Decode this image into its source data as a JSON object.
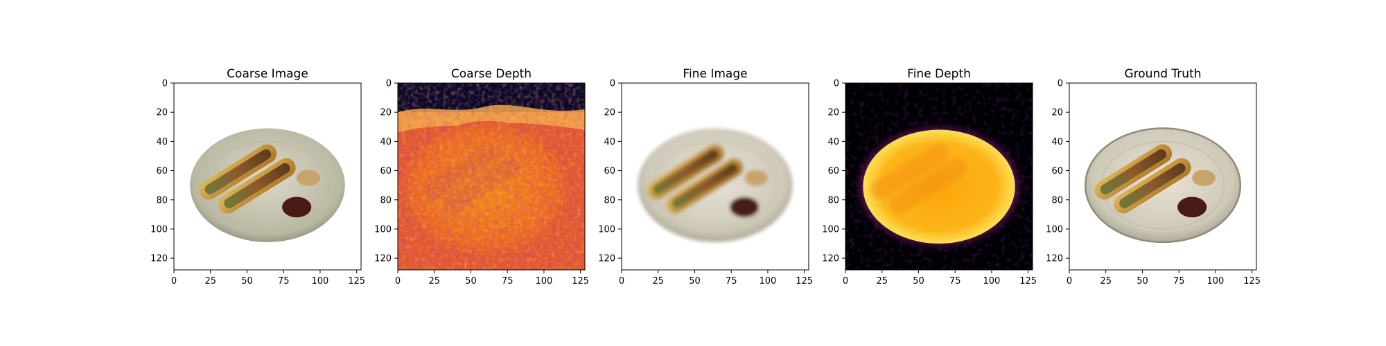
{
  "panels": [
    {
      "title": "Coarse Image",
      "kind": "rgb",
      "variant": "coarse"
    },
    {
      "title": "Coarse Depth",
      "kind": "depth",
      "variant": "coarse"
    },
    {
      "title": "Fine Image",
      "kind": "rgb",
      "variant": "fine"
    },
    {
      "title": "Fine Depth",
      "kind": "depth",
      "variant": "fine"
    },
    {
      "title": "Ground Truth",
      "kind": "rgb",
      "variant": "gt"
    }
  ],
  "axes": {
    "xticks": [
      "0",
      "25",
      "50",
      "75",
      "100",
      "125"
    ],
    "yticks": [
      "0",
      "20",
      "40",
      "60",
      "80",
      "100",
      "120"
    ],
    "xtick_values": [
      0,
      25,
      50,
      75,
      100,
      125
    ],
    "ytick_values": [
      0,
      20,
      40,
      60,
      80,
      100,
      120
    ],
    "extent": [
      0,
      128
    ]
  },
  "colors": {
    "background": "#ffffff",
    "depth_far": "#000004",
    "depth_mid": "#bc3754",
    "depth_near": "#fcffa4",
    "plate": "#d9d4c6",
    "bun": "#c99a3a",
    "sausage": "#8a4a2a",
    "sauce": "#4a1a14"
  }
}
